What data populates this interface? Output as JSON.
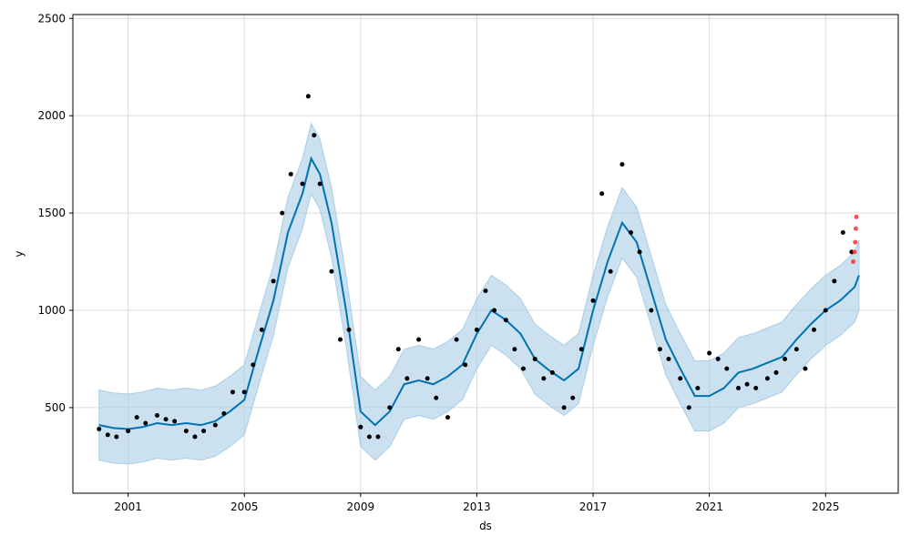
{
  "chart_data": {
    "type": "scatter",
    "title": "",
    "xlabel": "ds",
    "ylabel": "y",
    "x_ticks": [
      "2001",
      "2005",
      "2009",
      "2013",
      "2017",
      "2021",
      "2025"
    ],
    "y_ticks": [
      500,
      1000,
      1500,
      2000,
      2500
    ],
    "xlim": [
      1999.1,
      2027.5
    ],
    "ylim": [
      60,
      2520
    ],
    "grid": true,
    "colors": {
      "observed": "#000000",
      "forecast_line": "#0072B2",
      "uncertainty": "#A9CDE6",
      "recent": "#FF3333"
    },
    "series": [
      {
        "kind": "forecast",
        "points": [
          [
            2000.0,
            410
          ],
          [
            2000.5,
            395
          ],
          [
            2001.0,
            390
          ],
          [
            2001.5,
            400
          ],
          [
            2002.0,
            420
          ],
          [
            2002.5,
            410
          ],
          [
            2003.0,
            420
          ],
          [
            2003.5,
            410
          ],
          [
            2004.0,
            430
          ],
          [
            2004.5,
            480
          ],
          [
            2005.0,
            540
          ],
          [
            2005.5,
            800
          ],
          [
            2006.0,
            1050
          ],
          [
            2006.5,
            1400
          ],
          [
            2007.0,
            1600
          ],
          [
            2007.3,
            1780
          ],
          [
            2007.6,
            1700
          ],
          [
            2008.0,
            1450
          ],
          [
            2008.5,
            1000
          ],
          [
            2009.0,
            480
          ],
          [
            2009.5,
            410
          ],
          [
            2010.0,
            480
          ],
          [
            2010.5,
            620
          ],
          [
            2011.0,
            640
          ],
          [
            2011.5,
            620
          ],
          [
            2012.0,
            660
          ],
          [
            2012.5,
            720
          ],
          [
            2013.0,
            880
          ],
          [
            2013.5,
            1000
          ],
          [
            2014.0,
            950
          ],
          [
            2014.5,
            880
          ],
          [
            2015.0,
            750
          ],
          [
            2015.5,
            690
          ],
          [
            2016.0,
            640
          ],
          [
            2016.5,
            700
          ],
          [
            2017.0,
            1000
          ],
          [
            2017.5,
            1250
          ],
          [
            2018.0,
            1450
          ],
          [
            2018.5,
            1350
          ],
          [
            2019.0,
            1100
          ],
          [
            2019.5,
            850
          ],
          [
            2020.0,
            700
          ],
          [
            2020.5,
            560
          ],
          [
            2021.0,
            560
          ],
          [
            2021.5,
            600
          ],
          [
            2022.0,
            680
          ],
          [
            2022.5,
            700
          ],
          [
            2023.0,
            730
          ],
          [
            2023.5,
            760
          ],
          [
            2024.0,
            850
          ],
          [
            2024.5,
            930
          ],
          [
            2025.0,
            1000
          ],
          [
            2025.5,
            1050
          ],
          [
            2026.0,
            1120
          ],
          [
            2026.15,
            1180
          ]
        ],
        "band_halfwidth": 180
      },
      {
        "kind": "observed",
        "points": [
          [
            2000.0,
            390
          ],
          [
            2000.3,
            360
          ],
          [
            2000.6,
            350
          ],
          [
            2001.0,
            380
          ],
          [
            2001.3,
            450
          ],
          [
            2001.6,
            420
          ],
          [
            2002.0,
            460
          ],
          [
            2002.3,
            440
          ],
          [
            2002.6,
            430
          ],
          [
            2003.0,
            380
          ],
          [
            2003.3,
            350
          ],
          [
            2003.6,
            380
          ],
          [
            2004.0,
            410
          ],
          [
            2004.3,
            470
          ],
          [
            2004.6,
            580
          ],
          [
            2005.0,
            580
          ],
          [
            2005.3,
            720
          ],
          [
            2005.6,
            900
          ],
          [
            2006.0,
            1150
          ],
          [
            2006.3,
            1500
          ],
          [
            2006.6,
            1700
          ],
          [
            2007.0,
            1650
          ],
          [
            2007.2,
            2100
          ],
          [
            2007.4,
            1900
          ],
          [
            2007.6,
            1650
          ],
          [
            2008.0,
            1200
          ],
          [
            2008.3,
            850
          ],
          [
            2008.6,
            900
          ],
          [
            2009.0,
            400
          ],
          [
            2009.3,
            350
          ],
          [
            2009.6,
            350
          ],
          [
            2010.0,
            500
          ],
          [
            2010.3,
            800
          ],
          [
            2010.6,
            650
          ],
          [
            2011.0,
            850
          ],
          [
            2011.3,
            650
          ],
          [
            2011.6,
            550
          ],
          [
            2012.0,
            450
          ],
          [
            2012.3,
            850
          ],
          [
            2012.6,
            720
          ],
          [
            2013.0,
            900
          ],
          [
            2013.3,
            1100
          ],
          [
            2013.6,
            1000
          ],
          [
            2014.0,
            950
          ],
          [
            2014.3,
            800
          ],
          [
            2014.6,
            700
          ],
          [
            2015.0,
            750
          ],
          [
            2015.3,
            650
          ],
          [
            2015.6,
            680
          ],
          [
            2016.0,
            500
          ],
          [
            2016.3,
            550
          ],
          [
            2016.6,
            800
          ],
          [
            2017.0,
            1050
          ],
          [
            2017.3,
            1600
          ],
          [
            2017.6,
            1200
          ],
          [
            2018.0,
            1750
          ],
          [
            2018.3,
            1400
          ],
          [
            2018.6,
            1300
          ],
          [
            2019.0,
            1000
          ],
          [
            2019.3,
            800
          ],
          [
            2019.6,
            750
          ],
          [
            2020.0,
            650
          ],
          [
            2020.3,
            500
          ],
          [
            2020.6,
            600
          ],
          [
            2021.0,
            780
          ],
          [
            2021.3,
            750
          ],
          [
            2021.6,
            700
          ],
          [
            2022.0,
            600
          ],
          [
            2022.3,
            620
          ],
          [
            2022.6,
            600
          ],
          [
            2023.0,
            650
          ],
          [
            2023.3,
            680
          ],
          [
            2023.6,
            750
          ],
          [
            2024.0,
            800
          ],
          [
            2024.3,
            700
          ],
          [
            2024.6,
            900
          ],
          [
            2025.0,
            1000
          ],
          [
            2025.3,
            1150
          ],
          [
            2025.6,
            1400
          ],
          [
            2025.9,
            1300
          ]
        ]
      },
      {
        "kind": "recent",
        "points": [
          [
            2025.95,
            1250
          ],
          [
            2026.0,
            1300
          ],
          [
            2026.02,
            1350
          ],
          [
            2026.04,
            1420
          ],
          [
            2026.06,
            1480
          ]
        ]
      }
    ]
  }
}
